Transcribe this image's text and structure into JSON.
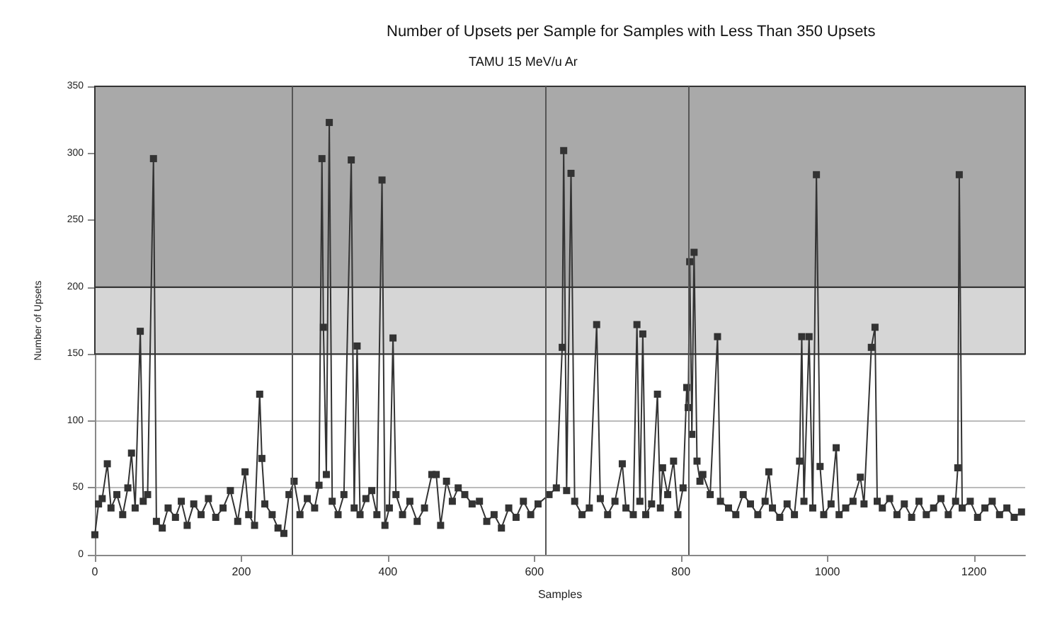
{
  "chart_data": {
    "type": "line",
    "title": "Number of Upsets per Sample for Samples with Less Than 350 Upsets",
    "subtitle": "TAMU 15 MeV/u Ar",
    "xlabel": "Samples",
    "ylabel": "Number of Upsets",
    "xlim": [
      0,
      1270
    ],
    "xticks": [
      0,
      200,
      400,
      600,
      800,
      1000,
      1200
    ],
    "ylim": [
      0,
      350
    ],
    "yticks": [
      0,
      50,
      100,
      150,
      200,
      250,
      300,
      350
    ],
    "grid": "y",
    "marker": "square",
    "line_style": "solid",
    "bands": [
      {
        "axis": "y",
        "from": 150,
        "to": 200,
        "color": "#d6d6d6"
      },
      {
        "axis": "y",
        "from": 200,
        "to": 350,
        "color": "#a9a9a9"
      }
    ],
    "ref_lines": [
      {
        "axis": "x",
        "value": 270,
        "color": "#555555"
      },
      {
        "axis": "x",
        "value": 615,
        "color": "#555555"
      },
      {
        "axis": "x",
        "value": 810,
        "color": "#555555"
      }
    ],
    "series": [
      {
        "color": "#333333",
        "x": [
          0,
          5,
          10,
          17,
          22,
          30,
          38,
          45,
          50,
          55,
          62,
          66,
          72,
          80,
          84,
          92,
          100,
          110,
          118,
          126,
          135,
          145,
          155,
          165,
          175,
          185,
          195,
          205,
          210,
          218,
          225,
          228,
          232,
          242,
          250,
          258,
          265,
          272,
          280,
          290,
          300,
          306,
          310,
          312,
          316,
          320,
          324,
          332,
          340,
          350,
          354,
          358,
          362,
          370,
          378,
          385,
          392,
          396,
          402,
          407,
          411,
          420,
          430,
          440,
          450,
          460,
          466,
          472,
          480,
          488,
          496,
          505,
          515,
          525,
          535,
          545,
          555,
          565,
          575,
          585,
          595,
          605,
          620,
          630,
          638,
          640,
          644,
          650,
          655,
          665,
          675,
          685,
          690,
          700,
          710,
          720,
          725,
          735,
          740,
          744,
          748,
          752,
          760,
          768,
          772,
          775,
          782,
          790,
          796,
          803,
          808,
          810,
          812,
          815,
          818,
          822,
          826,
          830,
          840,
          850,
          854,
          865,
          875,
          885,
          895,
          905,
          915,
          920,
          925,
          935,
          945,
          955,
          962,
          965,
          968,
          975,
          980,
          985,
          990,
          995,
          1005,
          1012,
          1016,
          1025,
          1035,
          1045,
          1050,
          1060,
          1065,
          1068,
          1075,
          1085,
          1095,
          1105,
          1115,
          1125,
          1135,
          1145,
          1155,
          1165,
          1175,
          1178,
          1180,
          1184,
          1195,
          1205,
          1215,
          1225,
          1235,
          1245,
          1255,
          1265
        ],
        "values": [
          15,
          38,
          42,
          68,
          35,
          45,
          30,
          50,
          76,
          35,
          167,
          40,
          45,
          296,
          25,
          20,
          35,
          28,
          40,
          22,
          38,
          30,
          42,
          28,
          35,
          48,
          25,
          62,
          30,
          22,
          120,
          72,
          38,
          30,
          20,
          16,
          45,
          55,
          30,
          42,
          35,
          52,
          296,
          170,
          60,
          323,
          40,
          30,
          45,
          295,
          35,
          156,
          30,
          42,
          48,
          30,
          280,
          22,
          35,
          162,
          45,
          30,
          40,
          25,
          35,
          60,
          60,
          22,
          55,
          40,
          50,
          45,
          38,
          40,
          25,
          30,
          20,
          35,
          28,
          40,
          30,
          38,
          45,
          50,
          155,
          302,
          48,
          285,
          40,
          30,
          35,
          172,
          42,
          30,
          40,
          68,
          35,
          30,
          172,
          40,
          165,
          30,
          38,
          120,
          35,
          65,
          45,
          70,
          30,
          50,
          125,
          110,
          219,
          90,
          226,
          70,
          55,
          60,
          45,
          163,
          40,
          35,
          30,
          45,
          38,
          30,
          40,
          62,
          35,
          28,
          38,
          30,
          70,
          163,
          40,
          163,
          35,
          284,
          66,
          30,
          38,
          80,
          30,
          35,
          40,
          58,
          38,
          155,
          170,
          40,
          35,
          42,
          30,
          38,
          28,
          40,
          30,
          35,
          42,
          30,
          40,
          65,
          284,
          35,
          40,
          28,
          35,
          40,
          30,
          35,
          28,
          32
        ]
      }
    ]
  }
}
